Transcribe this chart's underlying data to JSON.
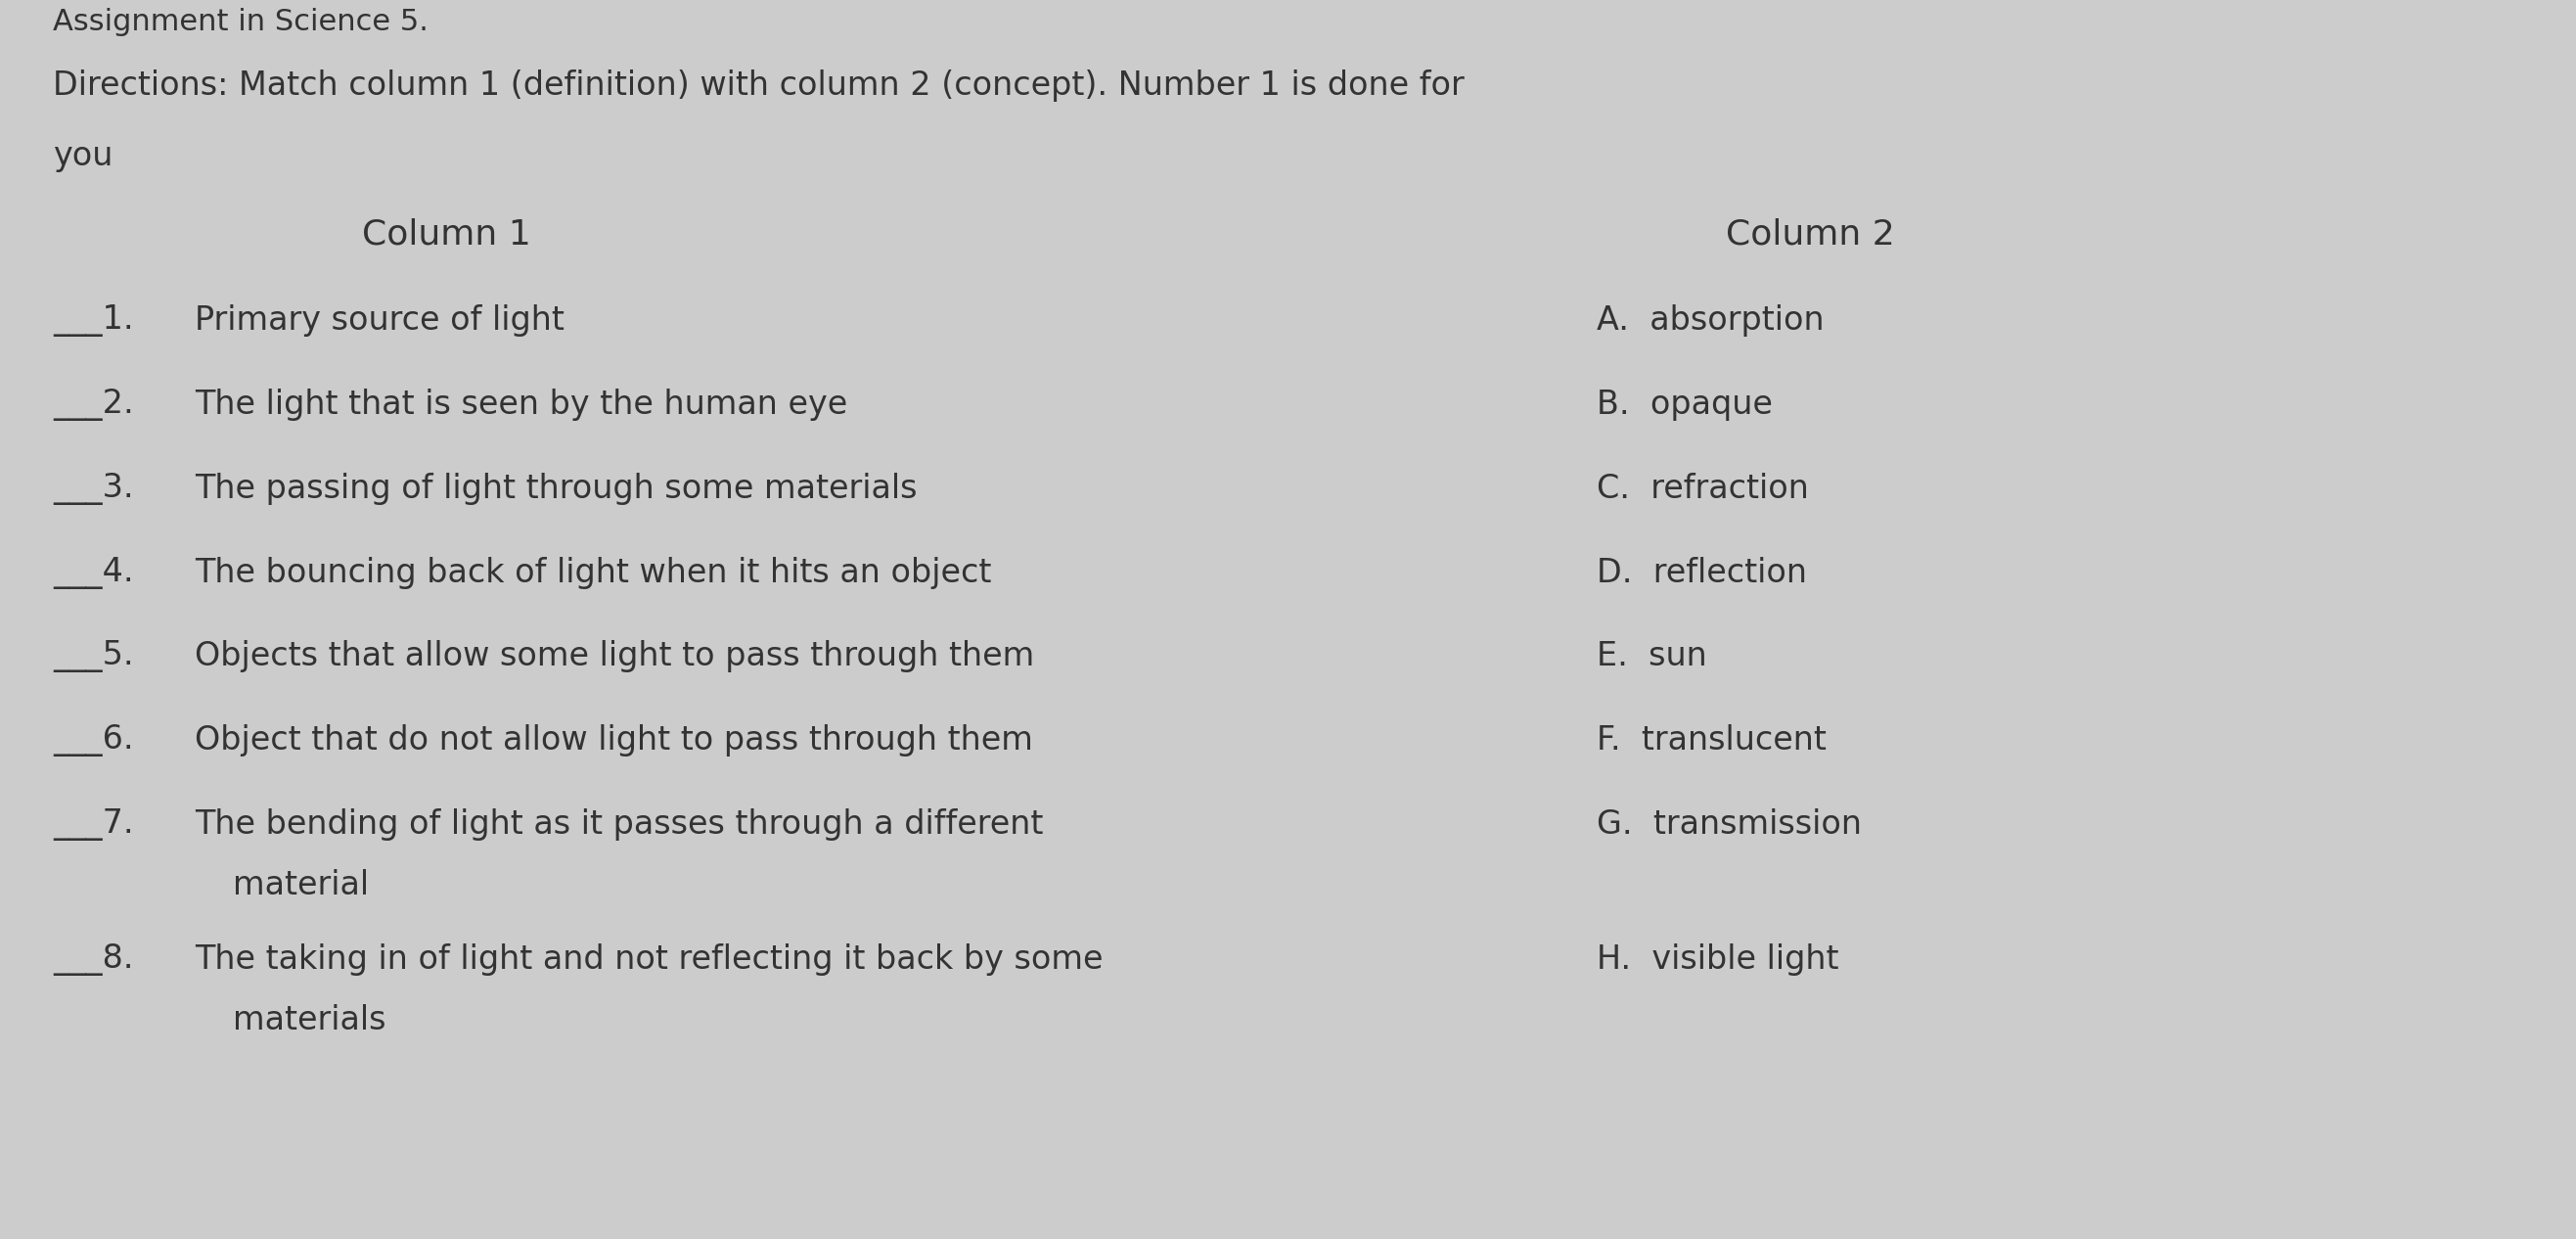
{
  "background_color": "#cccccc",
  "top_label": "Assignment in Science 5.",
  "title_line1": "Directions: Match column 1 (definition) with column 2 (concept). Number 1 is done for",
  "title_line2": "you",
  "col1_header": "Column 1",
  "col2_header": "Column 2",
  "col1_nums": [
    "___1.",
    "___2.",
    "___3.",
    "___4.",
    "___5.",
    "___6.",
    "___7.",
    "___8."
  ],
  "col1_texts": [
    "Primary source of light",
    "The light that is seen by the human eye",
    "The passing of light through some materials",
    "The bouncing back of light when it hits an object",
    "Objects that allow some light to pass through them",
    "Object that do not allow light to pass through them",
    "The bending of light as it passes through a different",
    "The taking in of light and not reflecting it back by some"
  ],
  "col1_text2": [
    "",
    "",
    "",
    "",
    "",
    "",
    "material",
    "materials"
  ],
  "col2_items": [
    "A.  absorption",
    "B.  opaque",
    "C.  refraction",
    "D.  reflection",
    "E.  sun",
    "F.  translucent",
    "G.  transmission",
    "H.  visible light"
  ],
  "text_color": "#333333",
  "font_size_top": 22,
  "font_size_title": 24,
  "font_size_header": 26,
  "font_size_body": 24,
  "fig_width": 26.33,
  "fig_height": 12.66
}
